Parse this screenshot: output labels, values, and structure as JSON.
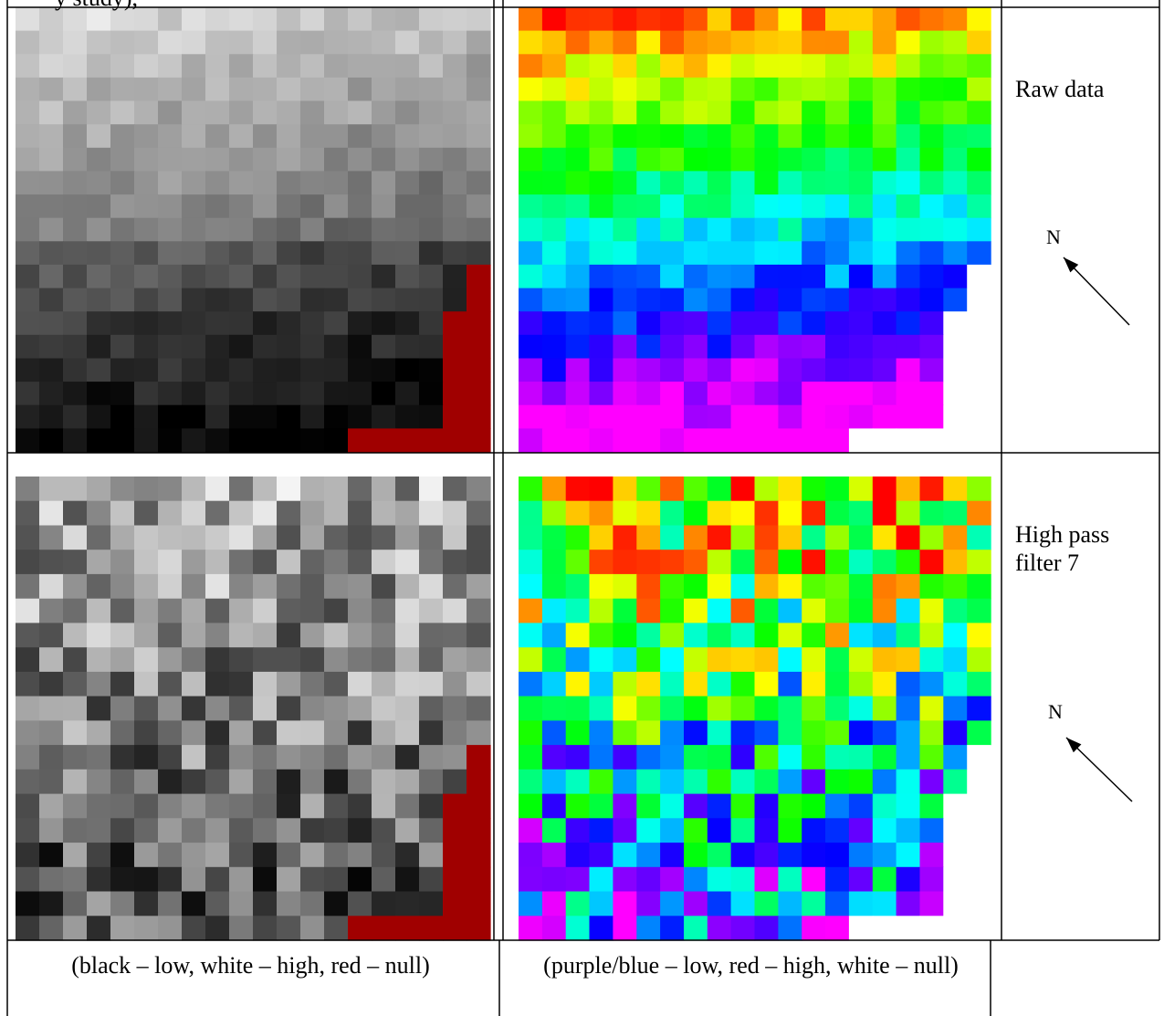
{
  "header": {
    "text": "y study),"
  },
  "panels": [
    {
      "label": "Raw data",
      "north": "N"
    },
    {
      "label": "High pass filter 7",
      "north": "N"
    }
  ],
  "captions": {
    "grayscale": "(black – low, white – high, red – null)",
    "color": "(purple/blue – low, red – high, white – null)"
  }
}
